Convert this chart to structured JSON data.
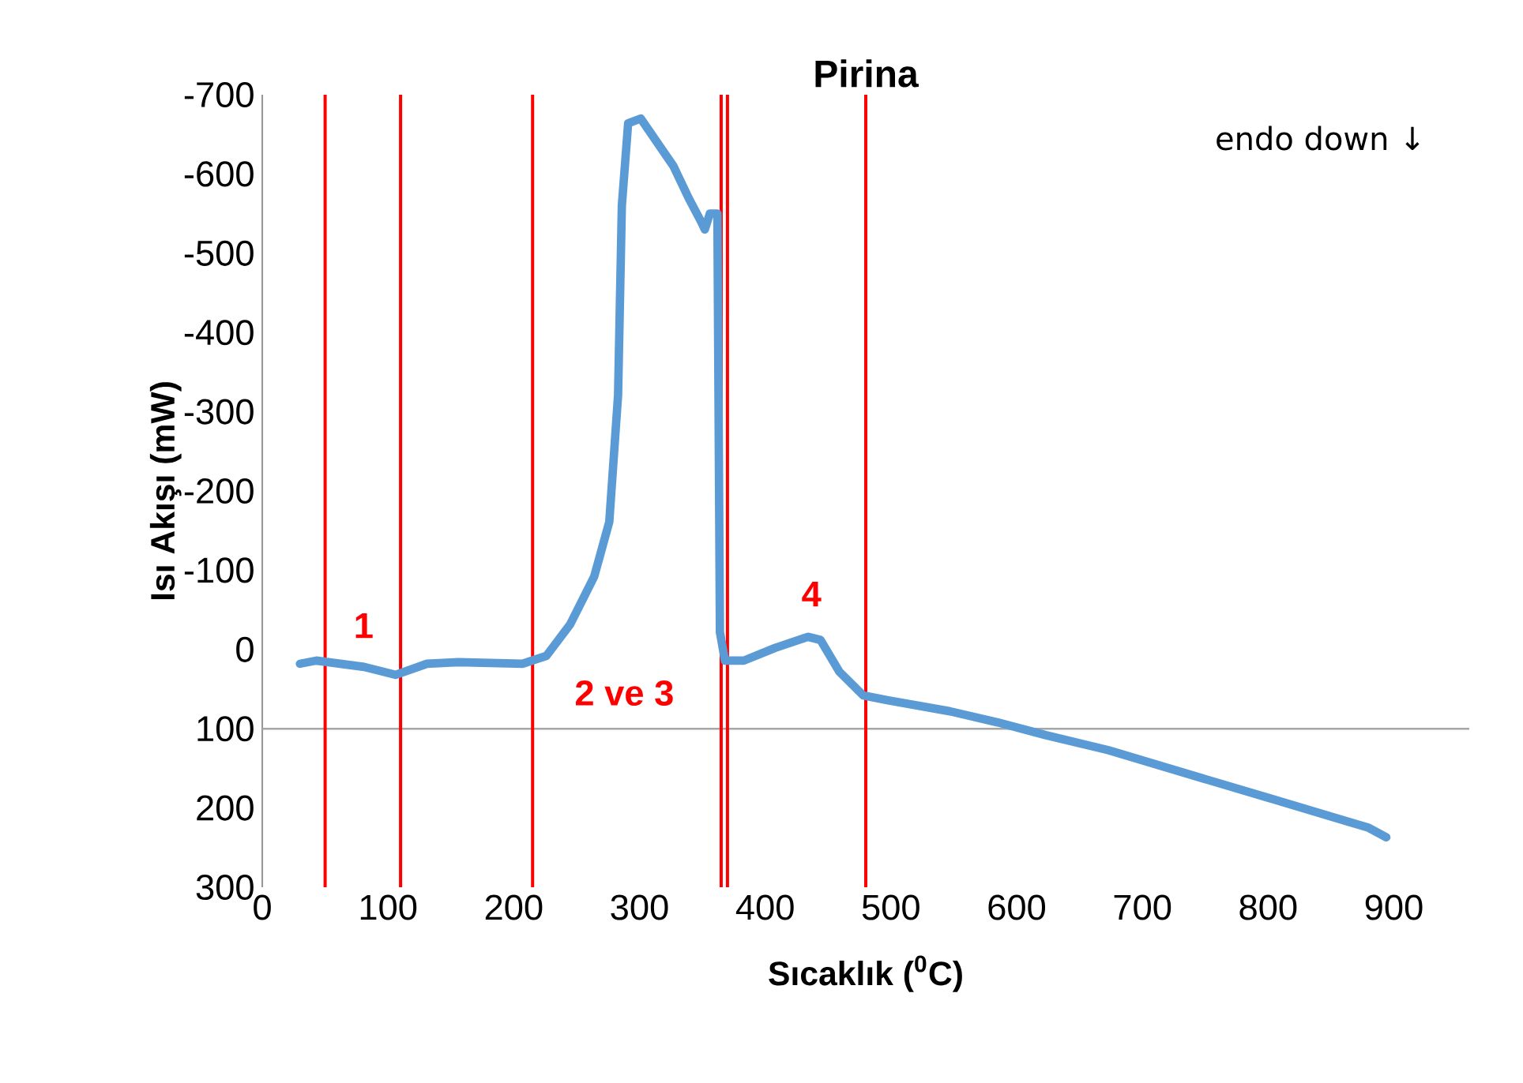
{
  "chart_data": {
    "type": "line",
    "title": "Pirina",
    "xlabel": "Sıcaklık ($^{0}$C)",
    "ylabel": "Isı Akışı (mW)",
    "xlim": [
      0,
      960
    ],
    "xticks": [
      0,
      100,
      200,
      300,
      400,
      500,
      600,
      700,
      800,
      900
    ],
    "ylim": [
      300,
      -700
    ],
    "yticks": [
      -700,
      -600,
      -500,
      -400,
      -300,
      -200,
      -100,
      0,
      100,
      200,
      300
    ],
    "grid": false,
    "marker": "none",
    "line_style": "solid",
    "series": [
      {
        "color": "#5b9bd5",
        "x": [
          30,
          43,
          81,
          106,
          131,
          156,
          207,
          226,
          245,
          264,
          276,
          283,
          286,
          291,
          301,
          314,
          327,
          339,
          349,
          352,
          356,
          362,
          364,
          368,
          383,
          408,
          434,
          444,
          459,
          478,
          497,
          547,
          585,
          623,
          673,
          736,
          800,
          863,
          880,
          894
        ],
        "values": [
          18,
          14,
          22,
          32,
          18,
          16,
          18,
          8,
          -32,
          -92,
          -161,
          -321,
          -560,
          -664,
          -670,
          -640,
          -610,
          -570,
          -540,
          -530,
          -550,
          -550,
          -22,
          14,
          14,
          -2,
          -16,
          -12,
          28,
          58,
          64,
          78,
          92,
          108,
          127,
          157,
          187,
          217,
          225,
          237
        ]
      }
    ],
    "ref_lines": [
      {
        "axis": "y",
        "value": 100,
        "color": "#a6a6a6"
      },
      {
        "axis": "x",
        "value": 50,
        "color": "#ff0000"
      },
      {
        "axis": "x",
        "value": 110,
        "color": "#ff0000"
      },
      {
        "axis": "x",
        "value": 215,
        "color": "#ff0000"
      },
      {
        "axis": "x",
        "value": 365,
        "color": "#ff0000"
      },
      {
        "axis": "x",
        "value": 370,
        "color": "#ff0000"
      },
      {
        "axis": "x",
        "value": 480,
        "color": "#ff0000"
      }
    ],
    "annotations": [
      "1",
      "2 ve 3",
      "4",
      "endo down ↓"
    ]
  }
}
